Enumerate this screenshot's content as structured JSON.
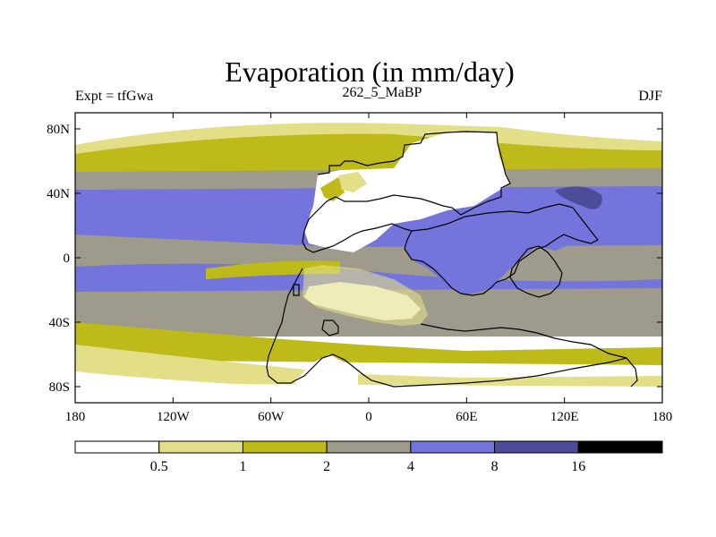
{
  "title": "Evaporation (in mm/day)",
  "left_string": "Expt = tfGwa",
  "center_string": "262_5_MaBP",
  "right_string": "DJF",
  "x_ticks": [
    {
      "value": -180,
      "label": "180"
    },
    {
      "value": -120,
      "label": "120W"
    },
    {
      "value": -60,
      "label": "60W"
    },
    {
      "value": 0,
      "label": "0"
    },
    {
      "value": 60,
      "label": "60E"
    },
    {
      "value": 120,
      "label": "120E"
    },
    {
      "value": 180,
      "label": "180"
    }
  ],
  "y_ticks": [
    {
      "value": 80,
      "label": "80N"
    },
    {
      "value": 40,
      "label": "40N"
    },
    {
      "value": 0,
      "label": "0"
    },
    {
      "value": -40,
      "label": "40S"
    },
    {
      "value": -80,
      "label": "80S"
    }
  ],
  "colorbar": {
    "boundaries": [
      "0.5",
      "1",
      "2",
      "4",
      "8",
      "16"
    ],
    "colors": [
      "#ffffff",
      "#e3df88",
      "#bdba1a",
      "#9e9a8c",
      "#7474dd",
      "#4c4c98",
      "#000000"
    ]
  },
  "colors": {
    "white": "#ffffff",
    "light_yellow": "#e3df88",
    "olive": "#bdba1a",
    "gray": "#9e9a8c",
    "blue": "#7474dd",
    "dark_blue": "#4c4c98"
  }
}
